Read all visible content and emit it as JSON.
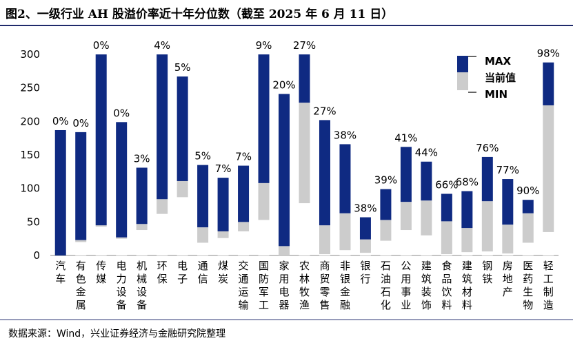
{
  "title": "图2、一级行业 AH 股溢价率近十年分位数（截至 2025 年 6 月 11 日）",
  "source": "数据来源：Wind，兴业证券经济与金融研究院整理",
  "colors": {
    "max_bar": "#0f2a82",
    "current_bar": "#cccccc",
    "min_bar": "#ffffff"
  },
  "chart_data": {
    "type": "bar",
    "subtype": "floating-range",
    "title": "",
    "xlabel": "",
    "ylabel": "",
    "ylim": [
      0,
      300
    ],
    "yticks": [
      0,
      50,
      100,
      150,
      200,
      250,
      300
    ],
    "legend": [
      "MAX",
      "当前值",
      "MIN"
    ],
    "categories": [
      "汽车",
      "有色金属",
      "传媒",
      "电力设备",
      "机械设备",
      "环保",
      "电子",
      "通信",
      "煤炭",
      "交通运输",
      "国防军工",
      "家用电器",
      "农林牧渔",
      "商贸零售",
      "非银金融",
      "银行",
      "石油石化",
      "公用事业",
      "建筑装饰",
      "食品饮料",
      "建筑材料",
      "钢铁",
      "房地产",
      "医药生物",
      "轻工制造"
    ],
    "series": [
      {
        "name": "MAX",
        "values": [
          187,
          184,
          300,
          199,
          131,
          300,
          267,
          135,
          116,
          134,
          300,
          241,
          300,
          202,
          166,
          57,
          99,
          162,
          140,
          92,
          96,
          147,
          114,
          83,
          288
        ]
      },
      {
        "name": "当前值",
        "values": [
          0,
          23,
          45,
          27,
          47,
          84,
          111,
          42,
          36,
          50,
          108,
          14,
          228,
          45,
          63,
          24,
          53,
          80,
          82,
          51,
          41,
          81,
          46,
          63,
          224
        ]
      },
      {
        "name": "MIN",
        "values": [
          0,
          20,
          43,
          25,
          38,
          62,
          87,
          19,
          26,
          36,
          53,
          0,
          78,
          2,
          8,
          4,
          22,
          38,
          30,
          2,
          5,
          6,
          3,
          19,
          35
        ]
      }
    ],
    "percentiles": [
      "0%",
      "0%",
      "0%",
      "0%",
      "3%",
      "4%",
      "5%",
      "5%",
      "7%",
      "7%",
      "9%",
      "20%",
      "27%",
      "27%",
      "38%",
      "38%",
      "39%",
      "41%",
      "44%",
      "66%",
      "68%",
      "76%",
      "77%",
      "90%",
      "98%"
    ]
  }
}
